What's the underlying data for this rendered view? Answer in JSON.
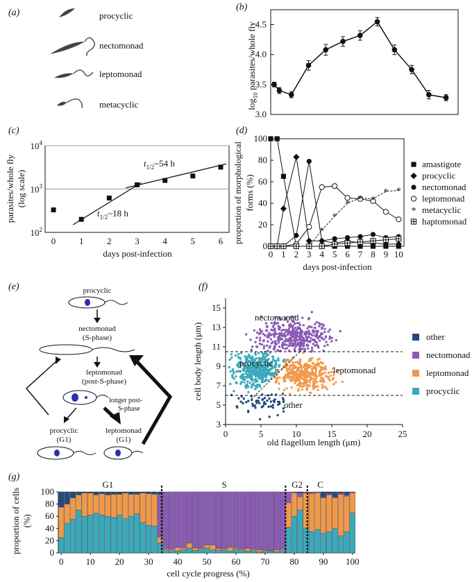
{
  "colors": {
    "other": "#24497a",
    "nectomonad": "#8a5bb5",
    "leptomonad": "#f0994a",
    "procyclic": "#3aa9bb",
    "cell_body": "#2b2fa8",
    "ink": "#111111",
    "grid": "#9a9a9a"
  },
  "panels": {
    "a": "(a)",
    "b": "(b)",
    "c": "(c)",
    "d": "(d)",
    "e": "(e)",
    "f": "(f)",
    "g": "(g)"
  },
  "panel_a": {
    "forms": [
      "procyclic",
      "nectomonad",
      "leptomonad",
      "metacyclic"
    ]
  },
  "panel_e": {
    "procyclic": "procyclic",
    "nectomonad": "nectomonad",
    "s_phase": "(S-phase)",
    "leptomonad": "leptomonad",
    "post_s": "(post-S-phase)",
    "longer1": "longer post-",
    "longer2": "S-phase",
    "procyclic_g1": "procyclic",
    "g1_a": "(G1)",
    "leptomonad_g1": "leptomonad",
    "g1_b": "(G1)"
  },
  "chart_data": [
    {
      "panel": "b",
      "type": "line",
      "x": [
        0,
        0.3,
        1,
        2,
        3,
        4,
        5,
        6,
        7,
        8,
        9,
        10
      ],
      "y": [
        3.5,
        3.4,
        3.33,
        3.82,
        4.08,
        4.22,
        4.32,
        4.55,
        4.08,
        3.75,
        3.33,
        3.28
      ],
      "error": [
        0.04,
        0.05,
        0.05,
        0.08,
        0.09,
        0.08,
        0.08,
        0.07,
        0.08,
        0.07,
        0.07,
        0.05
      ],
      "xlim": [
        0,
        10.5
      ],
      "ylim": [
        3.0,
        4.75
      ],
      "yticks": [
        "3.0",
        "3.5",
        "4.0",
        "4.5"
      ],
      "ytick_values": [
        3.0,
        3.5,
        4.0,
        4.5
      ],
      "ylabel_pre": "log",
      "ylabel_sub": "10",
      "ylabel_post": " parasites/whole fly"
    },
    {
      "panel": "c",
      "type": "scatter",
      "x": [
        0,
        1,
        2,
        3,
        4,
        5,
        6
      ],
      "y": [
        330,
        200,
        620,
        1250,
        1580,
        2000,
        3200
      ],
      "yscale": "log",
      "ylim": [
        100,
        10000
      ],
      "xlim": [
        -0.3,
        6.3
      ],
      "xticks": [
        "0",
        "1",
        "2",
        "3",
        "4",
        "5",
        "6"
      ],
      "ytick_base": "10",
      "ytick_exp": [
        "2",
        "3",
        "4"
      ],
      "xlabel": "days post-infection",
      "ylabel1": "parasites/whole fly",
      "ylabel2": "(log scale)",
      "fit1": {
        "x": [
          0.7,
          3.15
        ],
        "y": [
          150,
          1400
        ]
      },
      "fit2": {
        "x": [
          2.6,
          6.2
        ],
        "y": [
          1060,
          3800
        ]
      },
      "ann1_t": "t",
      "ann1_sub": "1/2",
      "ann1_rest": "~54 h",
      "ann2_t": "t",
      "ann2_sub": "1/2",
      "ann2_rest": "~18 h"
    },
    {
      "panel": "d",
      "type": "line",
      "x": [
        0,
        0.5,
        1,
        2,
        3,
        4,
        5,
        6,
        7,
        8,
        9,
        10
      ],
      "xlim": [
        0,
        10.2
      ],
      "ylim": [
        0,
        100
      ],
      "xticks": [
        "0",
        "1",
        "2",
        "3",
        "4",
        "5",
        "6",
        "7",
        "8",
        "9",
        "10"
      ],
      "yticks": [
        "0",
        "20",
        "40",
        "60",
        "80",
        "100"
      ],
      "xlabel": "days post-infection",
      "ylabel1": "proportion of morphological",
      "ylabel2": "forms (%)",
      "series": [
        {
          "name": "amastigote",
          "marker": "square",
          "values": [
            100,
            100,
            65,
            0,
            0,
            0,
            0,
            0,
            0,
            0,
            0,
            0
          ]
        },
        {
          "name": "procyclic",
          "marker": "diamond",
          "values": [
            0,
            0,
            35,
            83,
            5,
            5,
            3,
            5,
            3,
            3,
            2,
            2
          ]
        },
        {
          "name": "nectomonad",
          "marker": "circle",
          "values": [
            0,
            0,
            0,
            10,
            79,
            5,
            7,
            8,
            9,
            11,
            8,
            9
          ]
        },
        {
          "name": "leptomonad",
          "marker": "circle-open",
          "values": [
            0,
            0,
            0,
            2,
            18,
            55,
            56,
            45,
            44,
            42,
            32,
            25
          ]
        },
        {
          "name": "metacyclic",
          "marker": "star",
          "values": [
            0,
            0,
            0,
            0,
            0,
            15,
            28,
            40,
            45,
            44,
            51,
            52
          ]
        },
        {
          "name": "haptomonad",
          "marker": "square-plus",
          "values": [
            0,
            0,
            0,
            0,
            0,
            0,
            2,
            3,
            4,
            5,
            6,
            7
          ]
        }
      ]
    },
    {
      "panel": "f",
      "type": "scatter",
      "xlabel": "old flagellum length (μm)",
      "ylabel": "cell body length (μm)",
      "xlim": [
        0,
        25
      ],
      "ylim": [
        3,
        16
      ],
      "xticks": [
        "0",
        "5",
        "10",
        "15",
        "20",
        "25"
      ],
      "yticks": [
        "3",
        "5",
        "7",
        "9",
        "11",
        "13",
        "15"
      ],
      "thresholds_y": [
        10.5,
        6.0
      ],
      "series": [
        {
          "name": "other",
          "center": [
            5.5,
            5.2
          ],
          "spread": [
            3.0,
            0.8
          ],
          "n": 60
        },
        {
          "name": "nectomonad",
          "center": [
            9.5,
            12.0
          ],
          "spread": [
            4.0,
            1.3
          ],
          "n": 400
        },
        {
          "name": "leptomonad",
          "center": [
            11.0,
            8.2
          ],
          "spread": [
            3.5,
            1.2
          ],
          "n": 350
        },
        {
          "name": "procyclic",
          "center": [
            4.5,
            8.6
          ],
          "spread": [
            2.8,
            1.3
          ],
          "n": 420
        }
      ],
      "region_labels": [
        "nectomonad",
        "procyclic",
        "leptomonad",
        "other"
      ],
      "legend": [
        "other",
        "nectomonad",
        "leptomonad",
        "procyclic"
      ]
    },
    {
      "panel": "g",
      "type": "bar",
      "stacked": true,
      "xlabel": "cell cycle progress (%)",
      "ylabel1": "proportion of cells",
      "ylabel2": "(%)",
      "xticks": [
        "0",
        "10",
        "20",
        "30",
        "40",
        "50",
        "60",
        "70",
        "80",
        "90",
        "100"
      ],
      "yticks": [
        "0",
        "20",
        "40",
        "60",
        "80",
        "100"
      ],
      "phases": [
        "G1",
        "S",
        "G2",
        "C"
      ],
      "phase_boundaries": [
        34.5,
        77,
        84.5
      ],
      "categories": [
        0,
        2,
        4,
        6,
        8,
        10,
        12,
        14,
        16,
        18,
        20,
        22,
        24,
        26,
        28,
        30,
        32,
        34,
        36,
        38,
        40,
        42,
        44,
        46,
        48,
        50,
        52,
        54,
        56,
        58,
        60,
        62,
        64,
        66,
        68,
        70,
        72,
        74,
        76,
        78,
        80,
        82,
        84,
        86,
        88,
        90,
        92,
        94,
        96,
        98,
        100
      ],
      "series": [
        {
          "name": "procyclic",
          "values": [
            25,
            48,
            55,
            70,
            60,
            62,
            65,
            62,
            60,
            58,
            62,
            56,
            60,
            64,
            50,
            45,
            44,
            16,
            5,
            4,
            3,
            5,
            8,
            4,
            6,
            8,
            5,
            4,
            5,
            3,
            6,
            4,
            3,
            4,
            2,
            2,
            3,
            2,
            4,
            42,
            60,
            70,
            40,
            35,
            38,
            32,
            35,
            40,
            28,
            35,
            65
          ]
        },
        {
          "name": "leptomonad",
          "values": [
            50,
            32,
            35,
            25,
            38,
            36,
            30,
            35,
            35,
            38,
            34,
            42,
            36,
            32,
            48,
            52,
            52,
            10,
            2,
            2,
            6,
            3,
            8,
            4,
            2,
            5,
            8,
            3,
            2,
            6,
            2,
            2,
            4,
            2,
            3,
            2,
            1,
            3,
            2,
            40,
            38,
            22,
            58,
            62,
            60,
            58,
            60,
            50,
            68,
            58,
            33
          ]
        },
        {
          "name": "nectomonad",
          "values": [
            0,
            0,
            0,
            0,
            0,
            0,
            0,
            0,
            0,
            0,
            0,
            0,
            0,
            0,
            0,
            0,
            0,
            70,
            93,
            94,
            91,
            92,
            84,
            92,
            92,
            87,
            87,
            93,
            93,
            91,
            92,
            94,
            93,
            94,
            95,
            96,
            96,
            95,
            94,
            18,
            2,
            6,
            2,
            3,
            2,
            2,
            2,
            2,
            2,
            2,
            2
          ]
        },
        {
          "name": "other",
          "values": [
            25,
            20,
            10,
            5,
            2,
            2,
            5,
            3,
            5,
            4,
            4,
            2,
            4,
            4,
            2,
            3,
            4,
            4,
            0,
            0,
            0,
            0,
            0,
            0,
            0,
            0,
            0,
            0,
            0,
            0,
            0,
            0,
            0,
            0,
            0,
            0,
            0,
            0,
            0,
            0,
            0,
            2,
            0,
            0,
            0,
            8,
            3,
            8,
            2,
            5,
            0
          ]
        }
      ]
    }
  ]
}
